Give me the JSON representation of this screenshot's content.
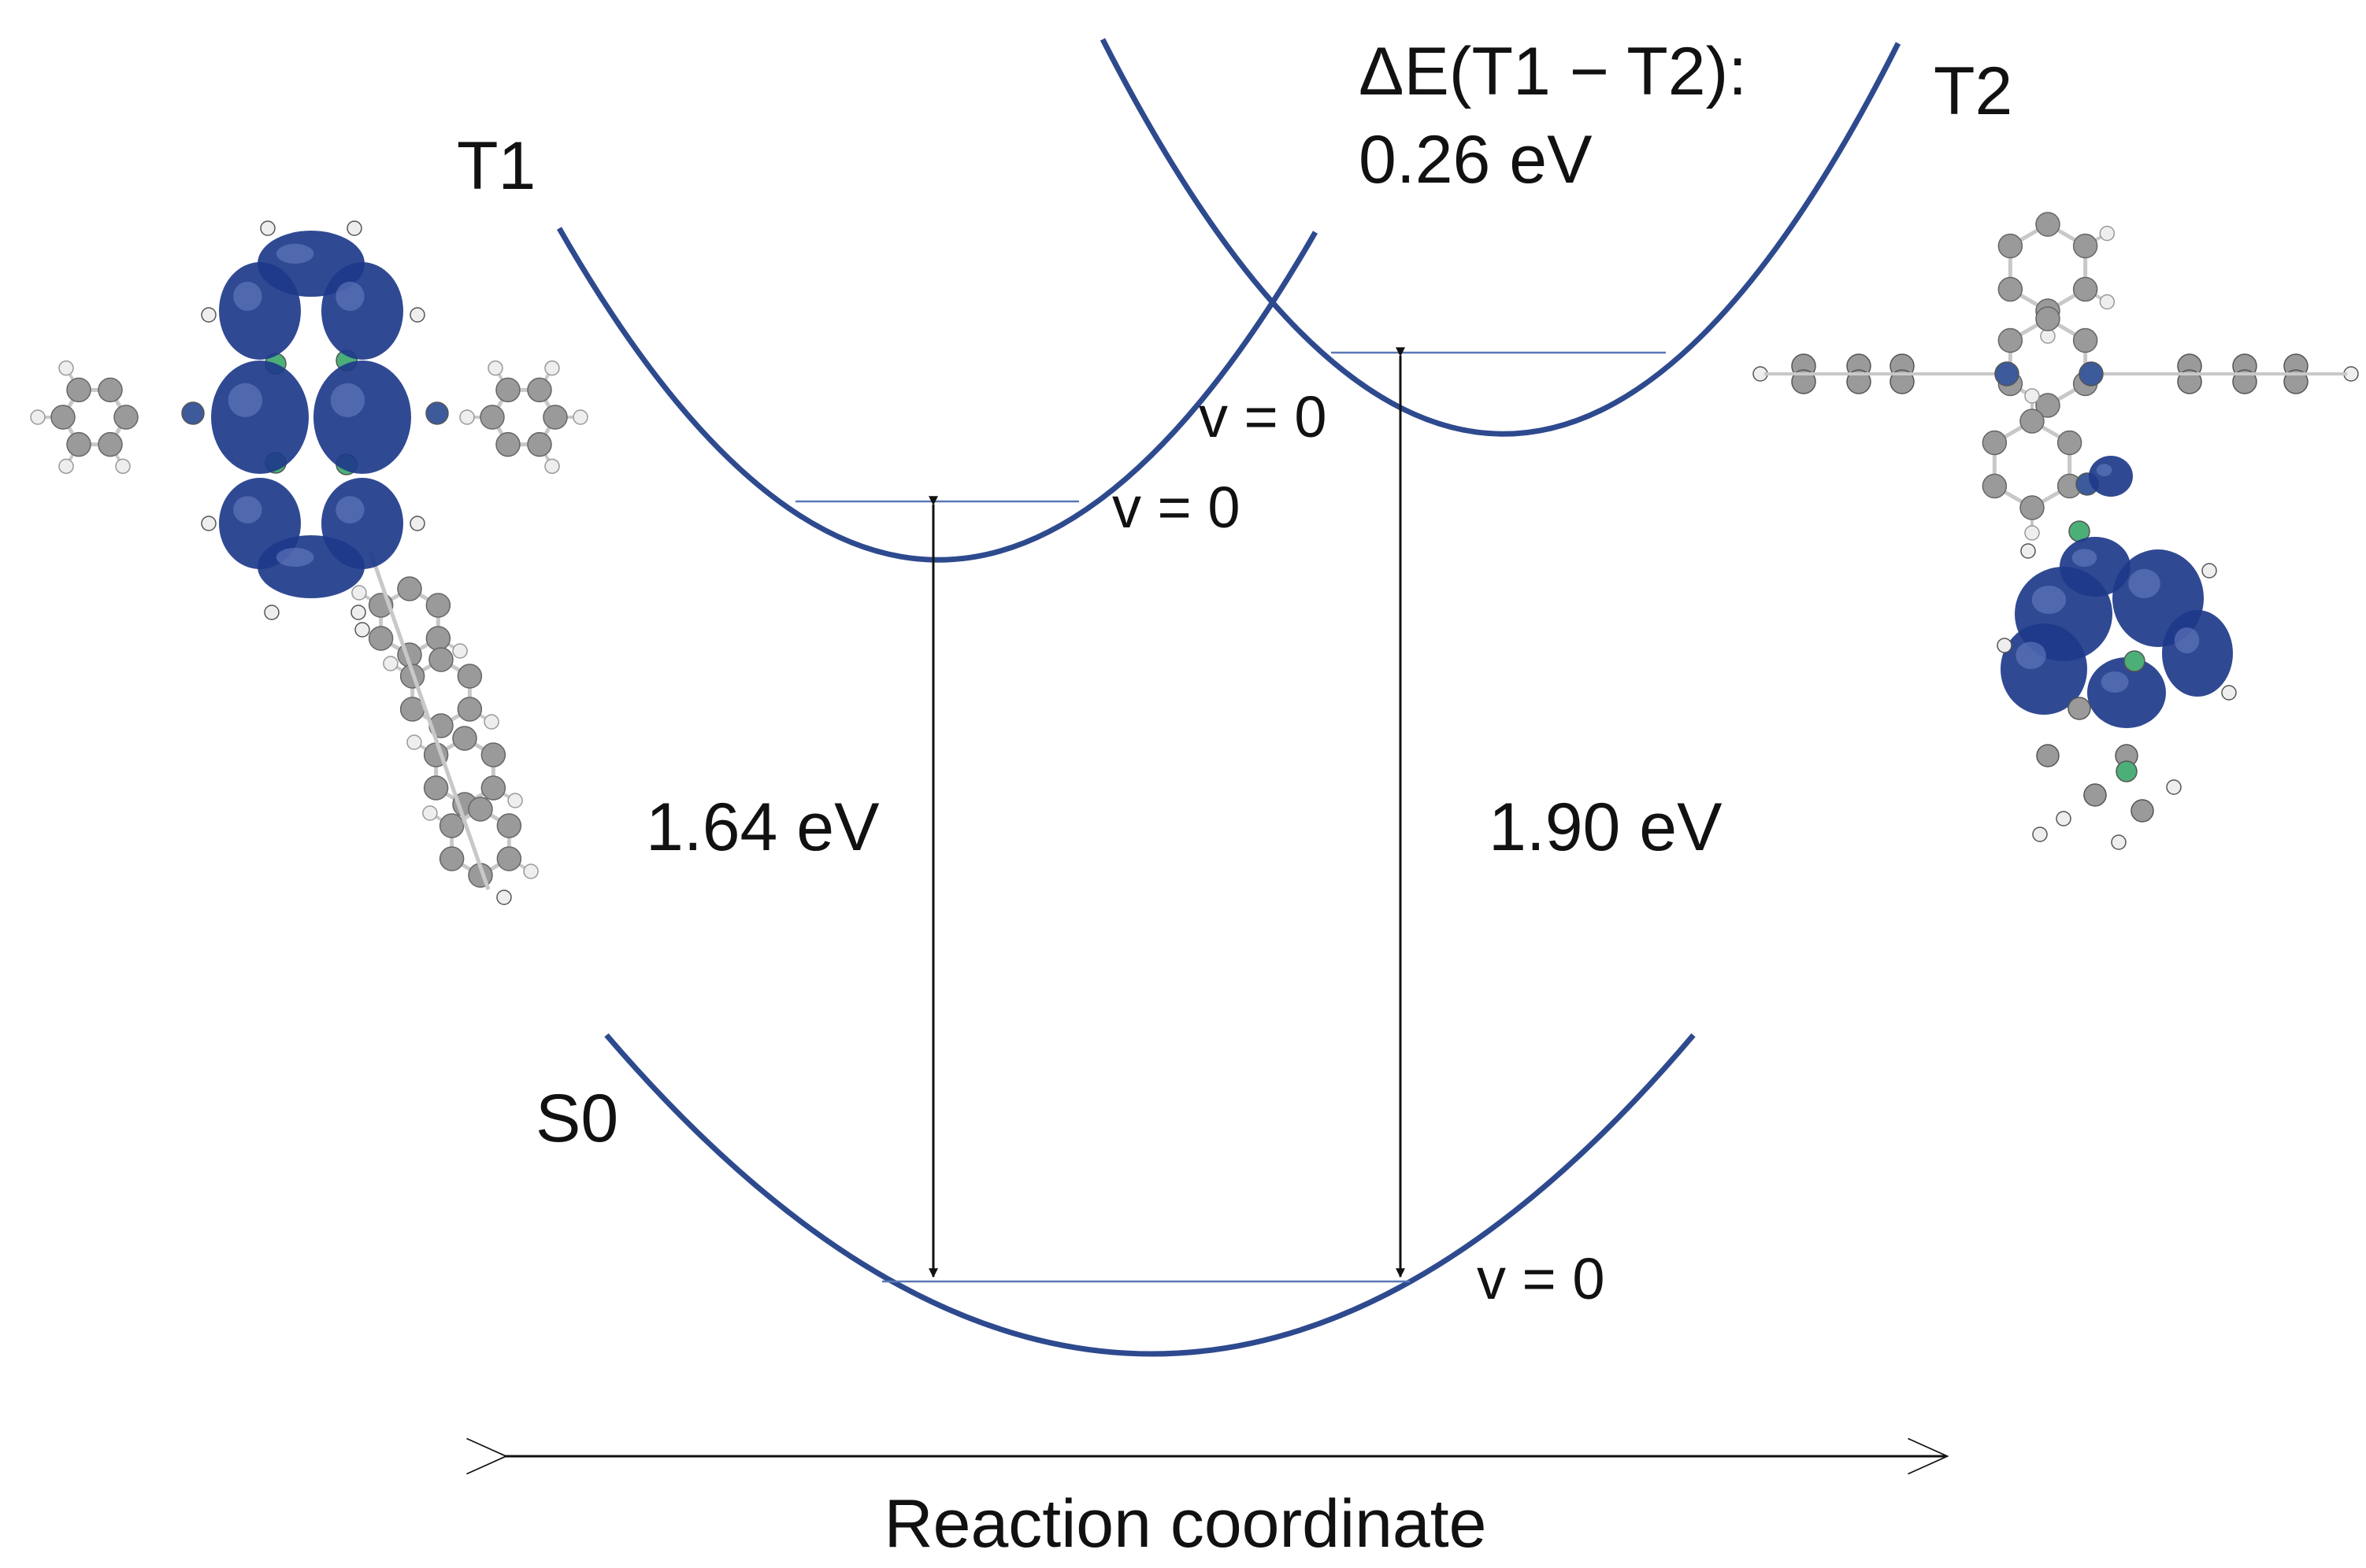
{
  "colors": {
    "curve": "#2e4a8e",
    "level_line": "#5a78b5",
    "arrow": "#111111",
    "orbital_lobe": "#1e3a8a",
    "atom_carbon": "#9a9a9a",
    "atom_hydrogen": "#eeeeee",
    "atom_nitrogen": "#3d5a9a",
    "atom_boron": "#4caf78",
    "bond": "#c8c8c8",
    "text": "#111111"
  },
  "states": {
    "t1": {
      "label": "T1"
    },
    "t2": {
      "label": "T2"
    },
    "s0": {
      "label": "S0"
    }
  },
  "levels": {
    "t1_v0": "v = 0",
    "t2_v0": "v = 0",
    "s0_v0": "v = 0"
  },
  "transitions": {
    "t1_s0": "1.64 eV",
    "t2_s0": "1.90 eV"
  },
  "delta": {
    "line1": "ΔE(T1 − T2):",
    "line2": "0.26 eV"
  },
  "axis": {
    "label": "Reaction coordinate"
  },
  "molecules": {
    "left": {
      "depicts": "T1 spin density on molecule"
    },
    "right": {
      "depicts": "T2 spin density on molecule"
    }
  }
}
